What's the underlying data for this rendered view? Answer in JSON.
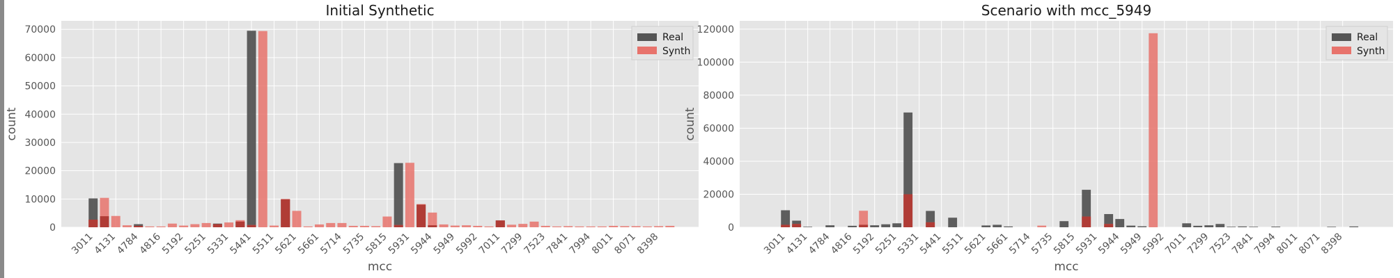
{
  "chart_data": [
    {
      "type": "bar",
      "title": "Initial Synthetic",
      "xlabel": "mcc",
      "ylabel": "count",
      "ylim": [
        0,
        73000
      ],
      "yticks": [
        0,
        10000,
        20000,
        30000,
        40000,
        50000,
        60000,
        70000
      ],
      "tick_labels": [
        "3011",
        "4131",
        "4784",
        "4816",
        "5192",
        "5251",
        "5331",
        "5441",
        "5511",
        "5621",
        "5661",
        "5714",
        "5735",
        "5815",
        "5931",
        "5944",
        "5949",
        "5992",
        "7011",
        "7299",
        "7523",
        "7841",
        "7994",
        "8011",
        "8071",
        "8398"
      ],
      "highlight_tick": "",
      "grid": true,
      "legend": {
        "position": "top-right",
        "entries": [
          "Real",
          "Synth"
        ]
      },
      "colors": {
        "real": "#555555",
        "synth": "#e8736c",
        "overlap": "#b03c36"
      },
      "series": [
        {
          "name": "Real",
          "values": [
            10200,
            3900,
            0,
            0,
            1100,
            0,
            0,
            0,
            0,
            0,
            0,
            1300,
            0,
            2000,
            69500,
            0,
            0,
            9900,
            0,
            0,
            0,
            0,
            0,
            0,
            0,
            0,
            0,
            22700,
            0,
            8000,
            700,
            0,
            0,
            0,
            0,
            0,
            2400,
            0,
            0,
            0,
            0,
            0,
            0,
            0,
            0,
            0,
            0,
            0,
            0,
            0,
            0,
            0
          ]
        },
        {
          "name": "Synth",
          "values": [
            2700,
            10400,
            4000,
            700,
            500,
            300,
            300,
            1300,
            600,
            1100,
            1500,
            1100,
            1700,
            2500,
            800,
            69400,
            600,
            10000,
            5800,
            300,
            1000,
            1500,
            1500,
            500,
            500,
            400,
            3800,
            800,
            22800,
            8200,
            5200,
            1000,
            600,
            700,
            500,
            300,
            2400,
            900,
            1200,
            2000,
            500,
            300,
            400,
            300,
            300,
            300,
            500,
            400,
            400,
            300,
            400,
            500
          ]
        }
      ]
    },
    {
      "type": "bar",
      "title": "Scenario with mcc_5949",
      "xlabel": "mcc",
      "ylabel": "count",
      "ylim": [
        0,
        125000
      ],
      "yticks": [
        0,
        20000,
        40000,
        60000,
        80000,
        100000,
        120000
      ],
      "tick_labels": [
        "3011",
        "4131",
        "4784",
        "4816",
        "5192",
        "5251",
        "5331",
        "5441",
        "5511",
        "5621",
        "5661",
        "5714",
        "5735",
        "5815",
        "5931",
        "5944",
        "5949",
        "5992",
        "7011",
        "7299",
        "7523",
        "7841",
        "7994",
        "8011",
        "8071",
        "8398"
      ],
      "highlight_tick": "5949",
      "grid": true,
      "legend": {
        "position": "top-right",
        "entries": [
          "Real",
          "Synth"
        ]
      },
      "colors": {
        "real": "#555555",
        "synth": "#e8736c",
        "overlap": "#b03c36"
      },
      "series": [
        {
          "name": "Real",
          "values": [
            10300,
            4000,
            300,
            0,
            1200,
            0,
            900,
            1500,
            1200,
            1800,
            2400,
            69500,
            0,
            9900,
            0,
            5800,
            0,
            0,
            1100,
            1500,
            500,
            0,
            0,
            0,
            0,
            3700,
            0,
            22700,
            0,
            8000,
            5000,
            1000,
            600,
            0,
            0,
            0,
            2400,
            900,
            1200,
            2000,
            300,
            500,
            300,
            0,
            400,
            0,
            0,
            0,
            0,
            300,
            0,
            500
          ]
        },
        {
          "name": "Synth",
          "values": [
            1500,
            2000,
            0,
            0,
            0,
            0,
            0,
            10000,
            0,
            0,
            0,
            20000,
            0,
            3000,
            0,
            0,
            0,
            0,
            0,
            0,
            0,
            0,
            0,
            1000,
            0,
            0,
            0,
            6500,
            0,
            2000,
            0,
            0,
            0,
            117500,
            0,
            0,
            0,
            0,
            0,
            0,
            0,
            0,
            0,
            0,
            0,
            0,
            0,
            0,
            0,
            0,
            0,
            0
          ]
        }
      ]
    }
  ]
}
